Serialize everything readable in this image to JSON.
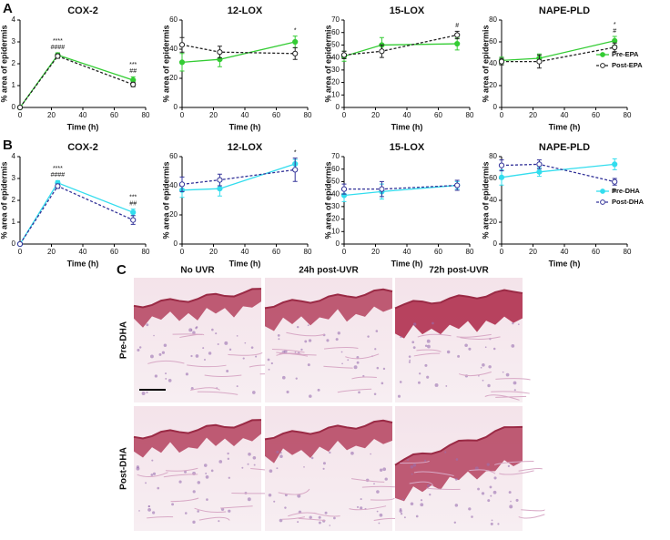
{
  "panel_labels": [
    "A",
    "B",
    "C"
  ],
  "chart_data": [
    {
      "type": "line",
      "title": "COX-2",
      "x_label": "Time (h)",
      "y_label": "% area of epidermis",
      "xlim": [
        0,
        80
      ],
      "xticks": [
        0,
        20,
        40,
        60,
        80
      ],
      "ylim": [
        0,
        4
      ],
      "yticks": [
        0,
        1,
        2,
        3,
        4
      ],
      "x": [
        0,
        24,
        72
      ],
      "series": [
        {
          "color": "#33cc33",
          "dashed": false,
          "marker": "filled",
          "values": [
            0,
            2.4,
            1.25
          ],
          "errors": [
            0.05,
            0.1,
            0.15
          ]
        },
        {
          "color": "#222222",
          "dashed": true,
          "marker": "open",
          "values": [
            0,
            2.35,
            1.05
          ],
          "errors": [
            0.05,
            0.1,
            0.1
          ]
        }
      ],
      "annotations": [
        {
          "x": 24,
          "text": "####"
        },
        {
          "x": 24,
          "text": "****"
        },
        {
          "x": 72,
          "text": "##"
        },
        {
          "x": 72,
          "text": "***"
        }
      ]
    },
    {
      "type": "line",
      "title": "12-LOX",
      "x_label": "Time (h)",
      "y_label": "% area of epidermis",
      "xlim": [
        0,
        80
      ],
      "xticks": [
        0,
        20,
        40,
        60,
        80
      ],
      "ylim": [
        0,
        60
      ],
      "yticks": [
        0,
        20,
        40,
        60
      ],
      "x": [
        0,
        24,
        72
      ],
      "series": [
        {
          "color": "#33cc33",
          "dashed": false,
          "marker": "filled",
          "values": [
            31,
            33,
            45
          ],
          "errors": [
            6,
            5,
            4
          ]
        },
        {
          "color": "#222222",
          "dashed": true,
          "marker": "open",
          "values": [
            43,
            38,
            37
          ],
          "errors": [
            5,
            4,
            4
          ]
        }
      ],
      "annotations": [
        {
          "x": 72,
          "text": "*"
        }
      ]
    },
    {
      "type": "line",
      "title": "15-LOX",
      "x_label": "Time (h)",
      "y_label": "% area of epidermis",
      "xlim": [
        0,
        80
      ],
      "xticks": [
        0,
        20,
        40,
        60,
        80
      ],
      "ylim": [
        0,
        70
      ],
      "yticks": [
        0,
        10,
        20,
        30,
        40,
        50,
        60,
        70
      ],
      "x": [
        0,
        24,
        72
      ],
      "series": [
        {
          "color": "#33cc33",
          "dashed": false,
          "marker": "filled",
          "values": [
            41,
            50,
            51
          ],
          "errors": [
            4,
            6,
            5
          ]
        },
        {
          "color": "#222222",
          "dashed": true,
          "marker": "open",
          "values": [
            42,
            45,
            58
          ],
          "errors": [
            3,
            5,
            3
          ]
        }
      ],
      "annotations": [
        {
          "x": 72,
          "text": "#"
        }
      ]
    },
    {
      "type": "line",
      "title": "NAPE-PLD",
      "x_label": "Time (h)",
      "y_label": "% area of epidermis",
      "xlim": [
        0,
        80
      ],
      "xticks": [
        0,
        20,
        40,
        60,
        80
      ],
      "ylim": [
        0,
        80
      ],
      "yticks": [
        0,
        20,
        40,
        60,
        80
      ],
      "x": [
        0,
        24,
        72
      ],
      "legend": "right",
      "series": [
        {
          "name": "Pre-EPA",
          "color": "#33cc33",
          "dashed": false,
          "marker": "filled",
          "values": [
            43,
            45,
            61
          ],
          "errors": [
            3,
            4,
            4
          ]
        },
        {
          "name": "Post-EPA",
          "color": "#222222",
          "dashed": true,
          "marker": "open",
          "values": [
            42,
            42,
            55
          ],
          "errors": [
            3,
            6,
            4
          ]
        }
      ],
      "annotations": [
        {
          "x": 72,
          "text": "#"
        },
        {
          "x": 72,
          "text": "*"
        }
      ]
    },
    {
      "type": "line",
      "title": "COX-2",
      "x_label": "Time (h)",
      "y_label": "% area of epidermis",
      "xlim": [
        0,
        80
      ],
      "xticks": [
        0,
        20,
        40,
        60,
        80
      ],
      "ylim": [
        0,
        4
      ],
      "yticks": [
        0,
        1,
        2,
        3,
        4
      ],
      "x": [
        0,
        24,
        72
      ],
      "series": [
        {
          "color": "#33ddee",
          "dashed": false,
          "marker": "filled",
          "values": [
            0,
            2.8,
            1.45
          ],
          "errors": [
            0.05,
            0.1,
            0.15
          ]
        },
        {
          "color": "#333399",
          "dashed": true,
          "marker": "open",
          "values": [
            0,
            2.65,
            1.1
          ],
          "errors": [
            0.05,
            0.1,
            0.2
          ]
        }
      ],
      "annotations": [
        {
          "x": 24,
          "text": "####"
        },
        {
          "x": 24,
          "text": "****"
        },
        {
          "x": 72,
          "text": "##"
        },
        {
          "x": 72,
          "text": "***"
        }
      ]
    },
    {
      "type": "line",
      "title": "12-LOX",
      "x_label": "Time (h)",
      "y_label": "% area of epidermis",
      "xlim": [
        0,
        80
      ],
      "xticks": [
        0,
        20,
        40,
        60,
        80
      ],
      "ylim": [
        0,
        60
      ],
      "yticks": [
        0,
        20,
        40,
        60
      ],
      "x": [
        0,
        24,
        72
      ],
      "series": [
        {
          "color": "#33ddee",
          "dashed": false,
          "marker": "filled",
          "values": [
            37,
            38,
            55
          ],
          "errors": [
            5,
            5,
            3
          ]
        },
        {
          "color": "#333399",
          "dashed": true,
          "marker": "open",
          "values": [
            41,
            44,
            51
          ],
          "errors": [
            5,
            4,
            8
          ]
        }
      ],
      "annotations": [
        {
          "x": 72,
          "text": "*"
        }
      ]
    },
    {
      "type": "line",
      "title": "15-LOX",
      "x_label": "Time (h)",
      "y_label": "% area of epidermis",
      "xlim": [
        0,
        80
      ],
      "xticks": [
        0,
        20,
        40,
        60,
        80
      ],
      "ylim": [
        0,
        70
      ],
      "yticks": [
        0,
        10,
        20,
        30,
        40,
        50,
        60,
        70
      ],
      "x": [
        0,
        24,
        72
      ],
      "series": [
        {
          "color": "#33ddee",
          "dashed": false,
          "marker": "filled",
          "values": [
            39,
            42,
            47
          ],
          "errors": [
            5,
            6,
            3
          ]
        },
        {
          "color": "#333399",
          "dashed": true,
          "marker": "open",
          "values": [
            44,
            44,
            47
          ],
          "errors": [
            4,
            6,
            4
          ]
        }
      ],
      "annotations": []
    },
    {
      "type": "line",
      "title": "NAPE-PLD",
      "x_label": "Time (h)",
      "y_label": "% area of epidermis",
      "xlim": [
        0,
        80
      ],
      "xticks": [
        0,
        20,
        40,
        60,
        80
      ],
      "ylim": [
        0,
        80
      ],
      "yticks": [
        0,
        20,
        40,
        60,
        80
      ],
      "x": [
        0,
        24,
        72
      ],
      "legend": "right",
      "series": [
        {
          "name": "Pre-DHA",
          "color": "#33ddee",
          "dashed": false,
          "marker": "filled",
          "values": [
            61,
            66,
            73
          ],
          "errors": [
            7,
            4,
            5
          ]
        },
        {
          "name": "Post-DHA",
          "color": "#333399",
          "dashed": true,
          "marker": "open",
          "values": [
            72,
            73,
            57
          ],
          "errors": [
            5,
            4,
            3
          ]
        }
      ],
      "annotations": [
        {
          "x": 72,
          "text": "#",
          "placement": "below"
        }
      ]
    }
  ],
  "histology": {
    "columns": [
      "No UVR",
      "24h post-UVR",
      "72h post-UVR"
    ],
    "rows": [
      "Pre-DHA",
      "Post-DHA"
    ]
  }
}
